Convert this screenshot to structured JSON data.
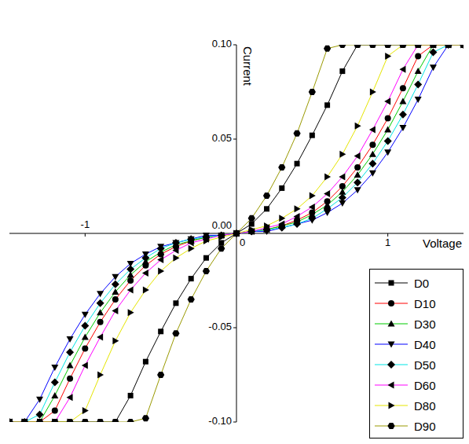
{
  "chart_data": {
    "type": "line",
    "x_label": "Voltage",
    "y_label": "Current",
    "x": [
      -1.5,
      -1.4,
      -1.3,
      -1.2,
      -1.1,
      -1.0,
      -0.9,
      -0.8,
      -0.7,
      -0.6,
      -0.5,
      -0.4,
      -0.3,
      -0.2,
      -0.1,
      0,
      0.1,
      0.2,
      0.3,
      0.4,
      0.5,
      0.6,
      0.7,
      0.8,
      0.9,
      1.0,
      1.1,
      1.2,
      1.3,
      1.4,
      1.5
    ],
    "xlim": [
      -1.5,
      1.5
    ],
    "xticks": [
      -1,
      0,
      1
    ],
    "ylim": [
      -0.1,
      0.1
    ],
    "yticks": [
      {
        "value": -0.1,
        "label": "-0.10"
      },
      {
        "value": -0.05,
        "label": "-0.05"
      },
      {
        "value": 0,
        "label": "0.00"
      },
      {
        "value": 0.05,
        "label": "0.05"
      },
      {
        "value": 0.1,
        "label": "0.10"
      }
    ],
    "legend": "lower right",
    "series": [
      {
        "name": "D0",
        "color": "#000000",
        "marker": "square",
        "values": [
          -0.1,
          -0.1,
          -0.1,
          -0.1,
          -0.1,
          -0.1,
          -0.1,
          -0.1,
          -0.086,
          -0.068,
          -0.052,
          -0.037,
          -0.024,
          -0.013,
          -0.005,
          0,
          0.005,
          0.013,
          0.024,
          0.037,
          0.052,
          0.068,
          0.086,
          0.1,
          0.1,
          0.1,
          0.1,
          0.1,
          0.1,
          0.1,
          0.1
        ]
      },
      {
        "name": "D10",
        "color": "#ff0000",
        "marker": "circle",
        "values": [
          -0.1,
          -0.1,
          -0.1,
          -0.094,
          -0.077,
          -0.061,
          -0.047,
          -0.035,
          -0.025,
          -0.017,
          -0.011,
          -0.007,
          -0.004,
          -0.002,
          -0.001,
          0,
          0.001,
          0.002,
          0.004,
          0.007,
          0.011,
          0.017,
          0.025,
          0.035,
          0.047,
          0.061,
          0.077,
          0.094,
          0.1,
          0.1,
          0.1
        ]
      },
      {
        "name": "D30",
        "color": "#00cc00",
        "marker": "triangle_up",
        "values": [
          -0.1,
          -0.1,
          -0.1,
          -0.086,
          -0.07,
          -0.055,
          -0.042,
          -0.031,
          -0.022,
          -0.015,
          -0.01,
          -0.006,
          -0.004,
          -0.002,
          -0.001,
          0,
          0.001,
          0.002,
          0.004,
          0.006,
          0.01,
          0.015,
          0.022,
          0.031,
          0.042,
          0.055,
          0.07,
          0.086,
          0.1,
          0.1,
          0.1
        ]
      },
      {
        "name": "D40",
        "color": "#0000ff",
        "marker": "triangle_down",
        "values": [
          -0.1,
          -0.1,
          -0.088,
          -0.071,
          -0.056,
          -0.043,
          -0.032,
          -0.023,
          -0.016,
          -0.011,
          -0.007,
          -0.005,
          -0.003,
          -0.001,
          -0.001,
          0,
          0.001,
          0.001,
          0.003,
          0.005,
          0.007,
          0.011,
          0.016,
          0.023,
          0.032,
          0.043,
          0.056,
          0.071,
          0.088,
          0.1,
          0.1
        ]
      },
      {
        "name": "D50",
        "color": "#00e5e5",
        "marker": "diamond",
        "values": [
          -0.1,
          -0.1,
          -0.096,
          -0.079,
          -0.063,
          -0.049,
          -0.037,
          -0.027,
          -0.019,
          -0.013,
          -0.008,
          -0.005,
          -0.003,
          -0.002,
          -0.001,
          0,
          0.001,
          0.002,
          0.003,
          0.005,
          0.008,
          0.013,
          0.019,
          0.027,
          0.037,
          0.049,
          0.063,
          0.079,
          0.096,
          0.1,
          0.1
        ]
      },
      {
        "name": "D60",
        "color": "#ff00ff",
        "marker": "triangle_left",
        "values": [
          -0.1,
          -0.1,
          -0.1,
          -0.1,
          -0.087,
          -0.07,
          -0.055,
          -0.041,
          -0.03,
          -0.021,
          -0.014,
          -0.009,
          -0.005,
          -0.003,
          -0.001,
          0,
          0.001,
          0.003,
          0.005,
          0.009,
          0.014,
          0.021,
          0.03,
          0.041,
          0.055,
          0.07,
          0.087,
          0.1,
          0.1,
          0.1,
          0.1
        ]
      },
      {
        "name": "D80",
        "color": "#e5e500",
        "marker": "triangle_right",
        "values": [
          -0.1,
          -0.1,
          -0.1,
          -0.1,
          -0.1,
          -0.094,
          -0.075,
          -0.057,
          -0.042,
          -0.03,
          -0.02,
          -0.013,
          -0.008,
          -0.004,
          -0.002,
          0,
          0.002,
          0.004,
          0.008,
          0.013,
          0.02,
          0.03,
          0.042,
          0.057,
          0.075,
          0.094,
          0.1,
          0.1,
          0.1,
          0.1,
          0.1
        ]
      },
      {
        "name": "D90",
        "color": "#999900",
        "marker": "hexagon",
        "values": [
          -0.1,
          -0.1,
          -0.1,
          -0.1,
          -0.1,
          -0.1,
          -0.1,
          -0.1,
          -0.1,
          -0.098,
          -0.075,
          -0.053,
          -0.035,
          -0.02,
          -0.008,
          0,
          0.008,
          0.02,
          0.035,
          0.053,
          0.075,
          0.098,
          0.1,
          0.1,
          0.1,
          0.1,
          0.1,
          0.1,
          0.1,
          0.1,
          0.1
        ]
      }
    ]
  }
}
